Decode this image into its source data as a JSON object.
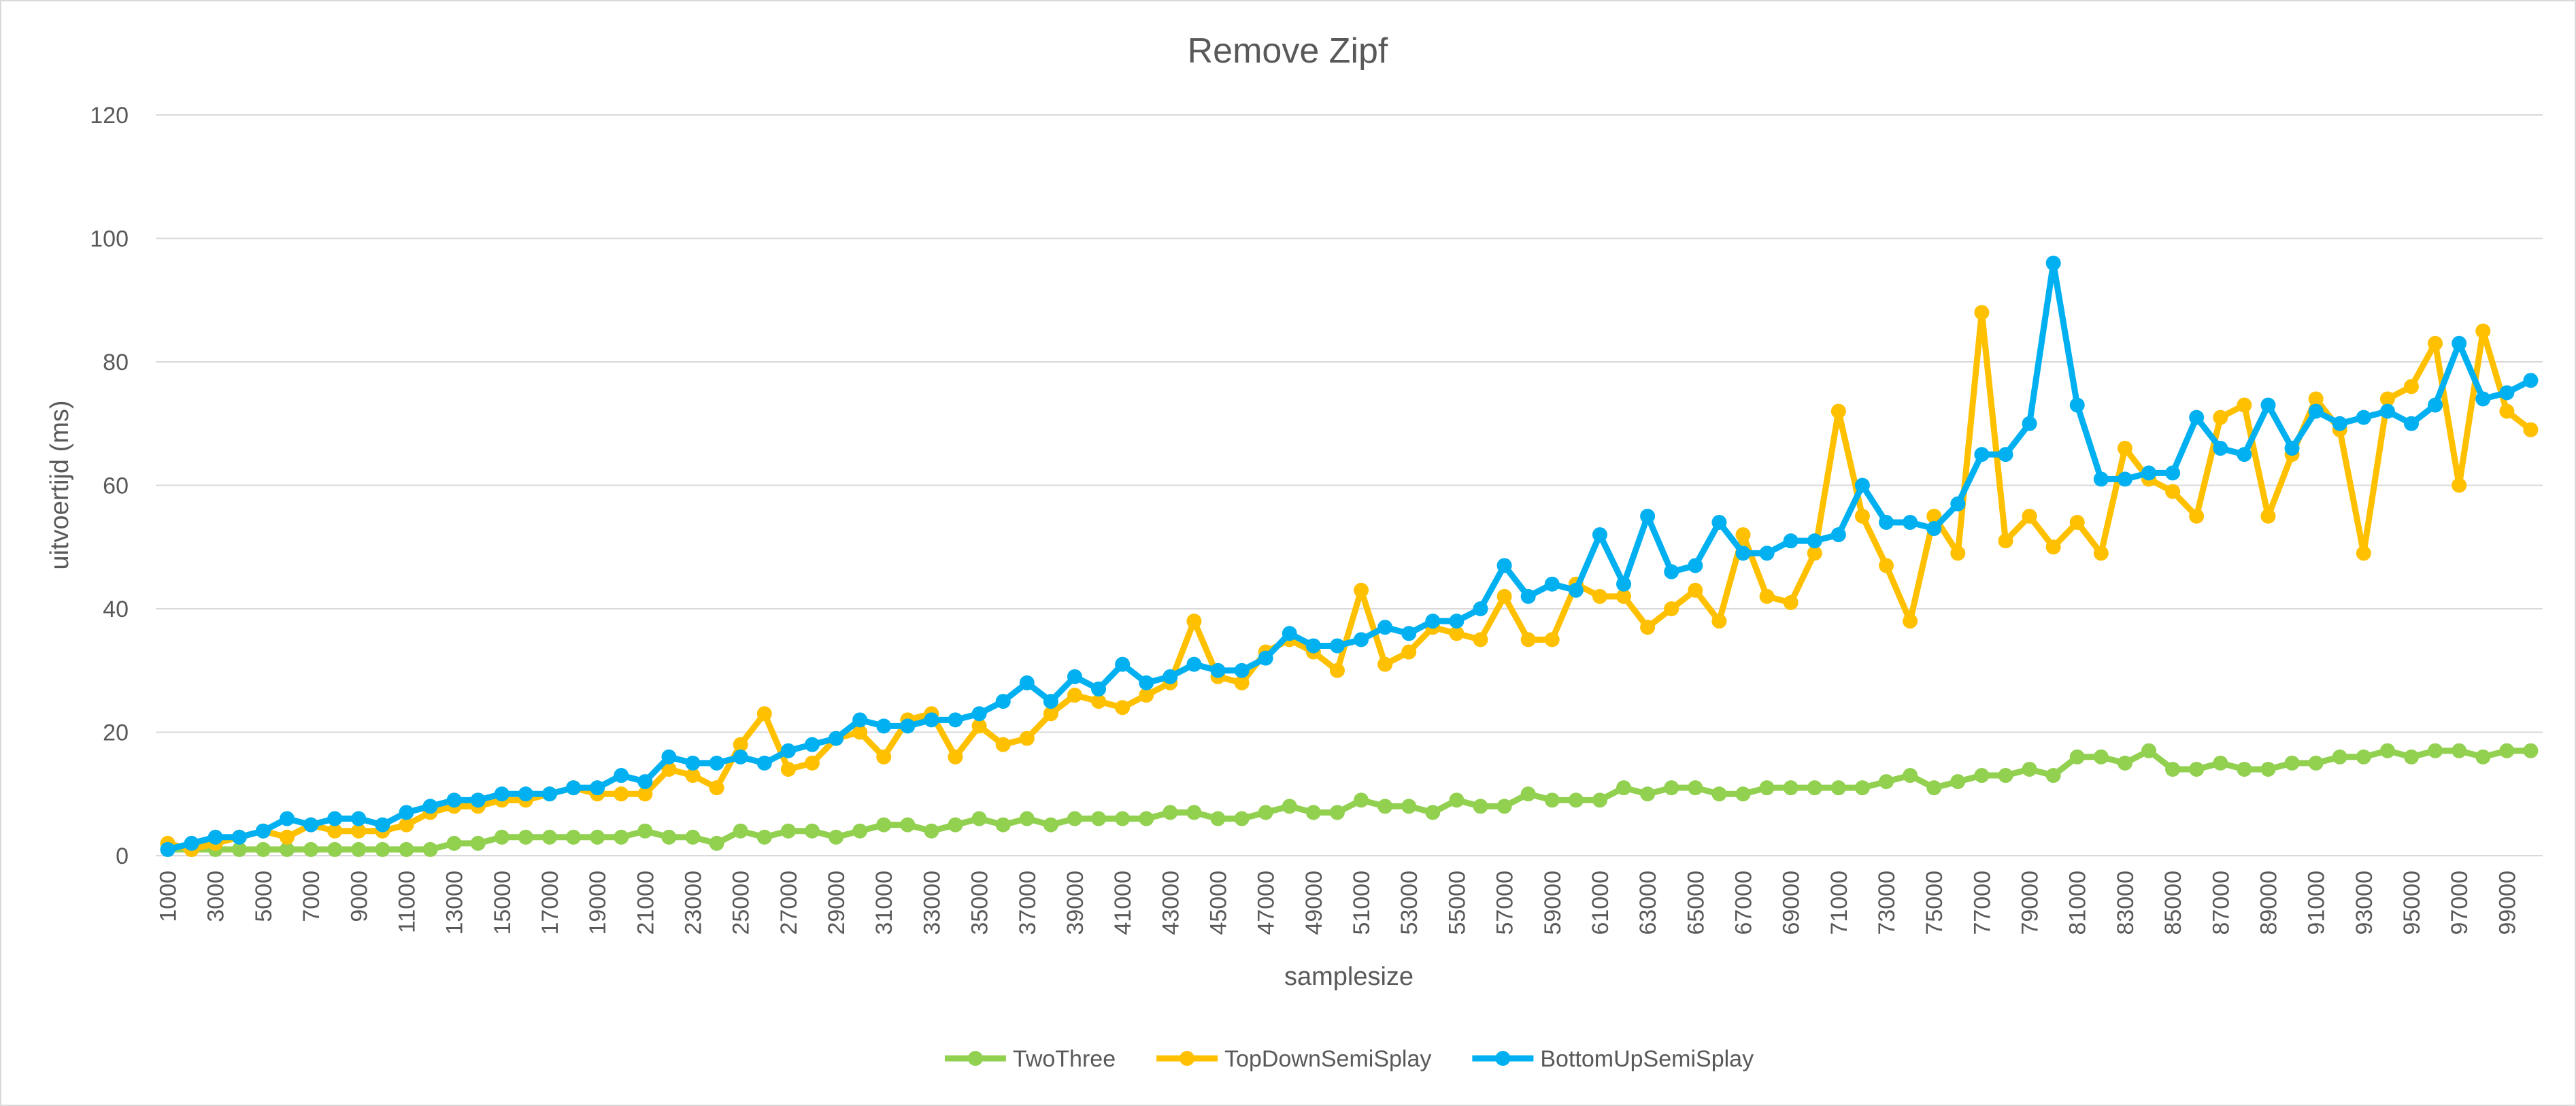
{
  "chart_data": {
    "type": "line",
    "title": "Remove Zipf",
    "x_label": "samplesize",
    "y_label": "uitvoertijd (ms)",
    "categories": [
      1000,
      null,
      3000,
      null,
      5000,
      null,
      7000,
      null,
      9000,
      null,
      11000,
      null,
      13000,
      null,
      15000,
      null,
      17000,
      null,
      19000,
      null,
      21000,
      null,
      23000,
      null,
      25000,
      null,
      27000,
      null,
      29000,
      null,
      31000,
      null,
      33000,
      null,
      35000,
      null,
      37000,
      null,
      39000,
      null,
      41000,
      null,
      43000,
      null,
      45000,
      null,
      47000,
      null,
      49000,
      null,
      51000,
      null,
      53000,
      null,
      55000,
      null,
      57000,
      null,
      59000,
      null,
      61000,
      null,
      63000,
      null,
      65000,
      null,
      67000,
      null,
      69000,
      null,
      71000,
      null,
      73000,
      null,
      75000,
      null,
      77000,
      null,
      79000,
      null,
      81000,
      null,
      83000,
      null,
      85000,
      null,
      87000,
      null,
      89000,
      null,
      91000,
      null,
      93000,
      null,
      95000,
      null,
      97000,
      null,
      99000,
      null
    ],
    "series": [
      {
        "name": "TwoThree",
        "color": "#92d050",
        "values": [
          1,
          1,
          1,
          1,
          1,
          1,
          1,
          1,
          1,
          1,
          1,
          1,
          2,
          2,
          3,
          3,
          3,
          3,
          3,
          3,
          4,
          3,
          3,
          2,
          4,
          3,
          4,
          4,
          3,
          4,
          5,
          5,
          4,
          5,
          6,
          5,
          6,
          5,
          6,
          6,
          6,
          6,
          7,
          7,
          6,
          6,
          7,
          8,
          7,
          7,
          9,
          8,
          8,
          7,
          9,
          8,
          8,
          10,
          9,
          9,
          9,
          11,
          10,
          11,
          11,
          10,
          10,
          11,
          11,
          11,
          11,
          11,
          12,
          13,
          11,
          12,
          13,
          13,
          14,
          13,
          16,
          16,
          15,
          17,
          14,
          14,
          15,
          14,
          14,
          15,
          15,
          16,
          16,
          17,
          16,
          17,
          17,
          16,
          17,
          17
        ]
      },
      {
        "name": "TopDownSemiSplay",
        "color": "#ffc000",
        "values": [
          2,
          1,
          2,
          3,
          4,
          3,
          5,
          4,
          4,
          4,
          5,
          7,
          8,
          8,
          9,
          9,
          10,
          11,
          10,
          10,
          10,
          14,
          13,
          11,
          18,
          23,
          14,
          15,
          19,
          20,
          16,
          22,
          23,
          16,
          21,
          18,
          19,
          23,
          26,
          25,
          24,
          26,
          28,
          38,
          29,
          28,
          33,
          35,
          33,
          30,
          43,
          31,
          33,
          37,
          36,
          35,
          42,
          35,
          35,
          44,
          42,
          42,
          37,
          40,
          43,
          38,
          52,
          42,
          41,
          49,
          72,
          55,
          47,
          38,
          55,
          49,
          88,
          51,
          55,
          50,
          54,
          49,
          66,
          61,
          59,
          55,
          71,
          73,
          55,
          65,
          74,
          69,
          49,
          74,
          76,
          83,
          60,
          85,
          72,
          69
        ]
      },
      {
        "name": "BottomUpSemiSplay",
        "color": "#00b0f0",
        "values": [
          1,
          2,
          3,
          3,
          4,
          6,
          5,
          6,
          6,
          5,
          7,
          8,
          9,
          9,
          10,
          10,
          10,
          11,
          11,
          13,
          12,
          16,
          15,
          15,
          16,
          15,
          17,
          18,
          19,
          22,
          21,
          21,
          22,
          22,
          23,
          25,
          28,
          25,
          29,
          27,
          31,
          28,
          29,
          31,
          30,
          30,
          32,
          36,
          34,
          34,
          35,
          37,
          36,
          38,
          38,
          40,
          47,
          42,
          44,
          43,
          52,
          44,
          55,
          46,
          47,
          54,
          49,
          49,
          51,
          51,
          52,
          60,
          54,
          54,
          53,
          57,
          65,
          65,
          70,
          96,
          73,
          61,
          61,
          62,
          62,
          71,
          66,
          65,
          73,
          66,
          72,
          70,
          71,
          72,
          70,
          73,
          83,
          74,
          75,
          77
        ]
      }
    ],
    "ylim": [
      0,
      120
    ],
    "yticks": [
      0,
      20,
      40,
      60,
      80,
      100,
      120
    ],
    "grid": true,
    "legend": "bottom"
  }
}
